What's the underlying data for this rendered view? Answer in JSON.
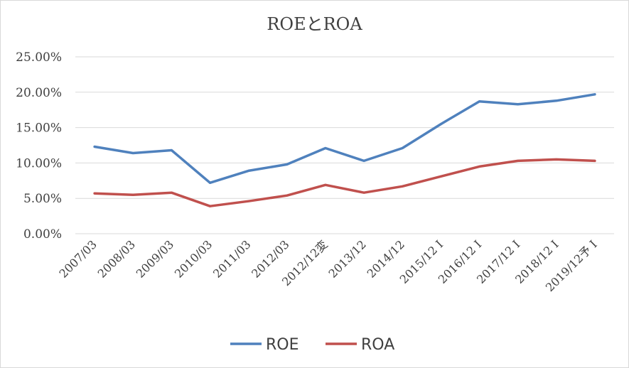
{
  "chart_data": {
    "type": "line",
    "title": "ROEとROA",
    "categories": [
      "2007/03",
      "2008/03",
      "2009/03",
      "2010/03",
      "2011/03",
      "2012/03",
      "2012/12変",
      "2013/12",
      "2014/12",
      "2015/12 I",
      "2016/12 I",
      "2017/12 I",
      "2018/12 I",
      "2019/12予 I"
    ],
    "series": [
      {
        "name": "ROE",
        "color": "#4f81bd",
        "values": [
          12.3,
          11.4,
          11.8,
          7.2,
          8.9,
          9.8,
          12.1,
          10.3,
          12.1,
          15.5,
          18.7,
          18.3,
          18.8,
          19.7
        ]
      },
      {
        "name": "ROA",
        "color": "#c0504d",
        "values": [
          5.7,
          5.5,
          5.8,
          3.9,
          4.6,
          5.4,
          6.9,
          5.8,
          6.7,
          8.1,
          9.5,
          10.3,
          10.5,
          10.3
        ]
      }
    ],
    "ylim": [
      0,
      25
    ],
    "yticks": [
      "0.00%",
      "5.00%",
      "10.00%",
      "15.00%",
      "20.00%",
      "25.00%"
    ],
    "grid": true,
    "legend_position": "bottom"
  }
}
